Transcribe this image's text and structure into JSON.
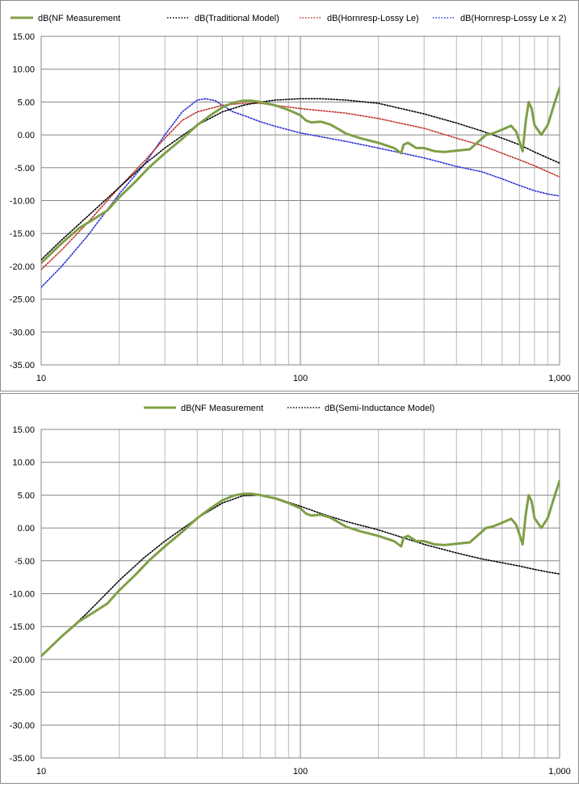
{
  "chart_data": [
    {
      "type": "line",
      "x_scale": "log",
      "xlim": [
        10,
        1000
      ],
      "ylim": [
        -35,
        15
      ],
      "x_ticks": [
        {
          "v": 10,
          "label": "10"
        },
        {
          "v": 100,
          "label": "100"
        },
        {
          "v": 1000,
          "label": "1,000"
        }
      ],
      "y_ticks": [
        {
          "v": 15,
          "label": "15.00"
        },
        {
          "v": 10,
          "label": "10.00"
        },
        {
          "v": 5,
          "label": "5.00"
        },
        {
          "v": 0,
          "label": "0.00"
        },
        {
          "v": -5,
          "label": "-5.00"
        },
        {
          "v": -10,
          "label": "-10.00"
        },
        {
          "v": -15,
          "label": "-15.00"
        },
        {
          "v": -20,
          "label": "-20.00"
        },
        {
          "v": -25,
          "label": "-25.00"
        },
        {
          "v": -30,
          "label": "-30.00"
        },
        {
          "v": -35,
          "label": "-35.00"
        }
      ],
      "grid": true,
      "legend_position": "top",
      "series": [
        {
          "name": "dB(NF Measurement",
          "color": "#7f9f47",
          "style": "solid",
          "x": [
            10,
            12,
            14,
            16,
            18,
            20,
            23,
            26,
            30,
            35,
            40,
            45,
            50,
            55,
            60,
            65,
            70,
            80,
            90,
            100,
            105,
            110,
            120,
            130,
            140,
            150,
            170,
            200,
            230,
            245,
            250,
            260,
            280,
            300,
            330,
            360,
            400,
            450,
            500,
            520,
            550,
            600,
            650,
            680,
            700,
            720,
            740,
            760,
            780,
            800,
            850,
            900,
            950,
            1000
          ],
          "y": [
            -19.5,
            -16.5,
            -14.2,
            -12.8,
            -11.5,
            -9.5,
            -7.2,
            -5,
            -2.8,
            -0.6,
            1.5,
            3,
            4.2,
            4.9,
            5.2,
            5.2,
            5.0,
            4.5,
            3.8,
            3.0,
            2.2,
            1.9,
            2.0,
            1.6,
            0.9,
            0.2,
            -0.5,
            -1.2,
            -2.0,
            -2.8,
            -1.5,
            -1.2,
            -2.0,
            -2.0,
            -2.5,
            -2.6,
            -2.4,
            -2.2,
            -0.6,
            0.0,
            0.2,
            0.8,
            1.4,
            0.5,
            -1.0,
            -2.5,
            2.0,
            5.0,
            4.0,
            1.5,
            0.0,
            1.5,
            4.5,
            7.2
          ]
        },
        {
          "name": "dB(Traditional Model)",
          "color": "#000000",
          "style": "dotted",
          "x": [
            10,
            12,
            15,
            20,
            25,
            30,
            40,
            50,
            60,
            70,
            80,
            100,
            120,
            150,
            200,
            300,
            400,
            500,
            600,
            700,
            800,
            900,
            1000
          ],
          "y": [
            -19,
            -16,
            -12.5,
            -8,
            -4.5,
            -2,
            1.5,
            3.5,
            4.5,
            5.0,
            5.3,
            5.5,
            5.5,
            5.3,
            4.8,
            3.2,
            1.8,
            0.6,
            -0.5,
            -1.5,
            -2.6,
            -3.5,
            -4.3
          ]
        },
        {
          "name": "dB(Hornresp-Lossy Le)",
          "color": "#c0302a",
          "style": "dotted",
          "x": [
            10,
            12,
            15,
            20,
            25,
            30,
            35,
            40,
            50,
            60,
            70,
            80,
            100,
            150,
            200,
            300,
            400,
            500,
            600,
            700,
            800,
            900,
            1000
          ],
          "y": [
            -20.5,
            -17.5,
            -13.5,
            -8.0,
            -4.0,
            -0.5,
            2.2,
            3.5,
            4.5,
            4.8,
            4.8,
            4.5,
            4.0,
            3.3,
            2.5,
            1.0,
            -0.5,
            -1.6,
            -2.8,
            -3.8,
            -4.7,
            -5.6,
            -6.4
          ]
        },
        {
          "name": "dB(Hornresp-Lossy Le x 2)",
          "color": "#2b2fd6",
          "style": "dotted",
          "x": [
            10,
            12,
            15,
            20,
            25,
            30,
            35,
            40,
            43,
            47,
            50,
            55,
            60,
            70,
            80,
            100,
            150,
            200,
            300,
            400,
            500,
            600,
            700,
            800,
            900,
            1000
          ],
          "y": [
            -23.2,
            -20.0,
            -15.5,
            -9.0,
            -4.5,
            0.0,
            3.5,
            5.3,
            5.5,
            5.2,
            4.5,
            3.5,
            3.0,
            2.0,
            1.3,
            0.3,
            -1.0,
            -2.0,
            -3.5,
            -4.8,
            -5.6,
            -6.7,
            -7.7,
            -8.5,
            -9.0,
            -9.3
          ]
        }
      ]
    },
    {
      "type": "line",
      "x_scale": "log",
      "xlim": [
        10,
        1000
      ],
      "ylim": [
        -35,
        15
      ],
      "x_ticks": [
        {
          "v": 10,
          "label": "10"
        },
        {
          "v": 100,
          "label": "100"
        },
        {
          "v": 1000,
          "label": "1,000"
        }
      ],
      "y_ticks": [
        {
          "v": 15,
          "label": "15.00"
        },
        {
          "v": 10,
          "label": "10.00"
        },
        {
          "v": 5,
          "label": "5.00"
        },
        {
          "v": 0,
          "label": "0.00"
        },
        {
          "v": -5,
          "label": "-5.00"
        },
        {
          "v": -10,
          "label": "-10.00"
        },
        {
          "v": -15,
          "label": "-15.00"
        },
        {
          "v": -20,
          "label": "-20.00"
        },
        {
          "v": -25,
          "label": "-25.00"
        },
        {
          "v": -30,
          "label": "-30.00"
        },
        {
          "v": -35,
          "label": "-35.00"
        }
      ],
      "grid": true,
      "legend_position": "top",
      "series": [
        {
          "name": "dB(NF Measurement",
          "color": "#7f9f47",
          "style": "solid",
          "x": [
            10,
            12,
            14,
            16,
            18,
            20,
            23,
            26,
            30,
            35,
            40,
            45,
            50,
            55,
            60,
            65,
            70,
            80,
            90,
            100,
            105,
            110,
            120,
            130,
            140,
            150,
            170,
            200,
            230,
            245,
            250,
            260,
            280,
            300,
            330,
            360,
            400,
            450,
            500,
            520,
            550,
            600,
            650,
            680,
            700,
            720,
            740,
            760,
            780,
            800,
            850,
            900,
            950,
            1000
          ],
          "y": [
            -19.5,
            -16.5,
            -14.2,
            -12.8,
            -11.5,
            -9.5,
            -7.2,
            -5,
            -2.8,
            -0.6,
            1.5,
            3,
            4.2,
            4.9,
            5.2,
            5.2,
            5.0,
            4.5,
            3.8,
            3.0,
            2.2,
            1.9,
            2.0,
            1.6,
            0.9,
            0.2,
            -0.5,
            -1.2,
            -2.0,
            -2.8,
            -1.5,
            -1.2,
            -2.0,
            -2.0,
            -2.5,
            -2.6,
            -2.4,
            -2.2,
            -0.6,
            0.0,
            0.2,
            0.8,
            1.4,
            0.5,
            -1.0,
            -2.5,
            2.0,
            5.0,
            4.0,
            1.5,
            0.0,
            1.5,
            4.5,
            7.2
          ]
        },
        {
          "name": "dB(Semi-Inductance Model)",
          "color": "#000000",
          "style": "dotted",
          "x": [
            10,
            12,
            15,
            20,
            25,
            30,
            40,
            50,
            60,
            70,
            80,
            100,
            120,
            150,
            200,
            300,
            400,
            500,
            600,
            700,
            800,
            900,
            1000
          ],
          "y": [
            -19.5,
            -16.5,
            -13.0,
            -8.0,
            -4.5,
            -2.0,
            1.5,
            3.8,
            4.9,
            5.0,
            4.6,
            3.3,
            2.2,
            1.0,
            -0.3,
            -2.5,
            -3.8,
            -4.7,
            -5.3,
            -5.8,
            -6.3,
            -6.7,
            -7.0
          ]
        }
      ]
    }
  ]
}
